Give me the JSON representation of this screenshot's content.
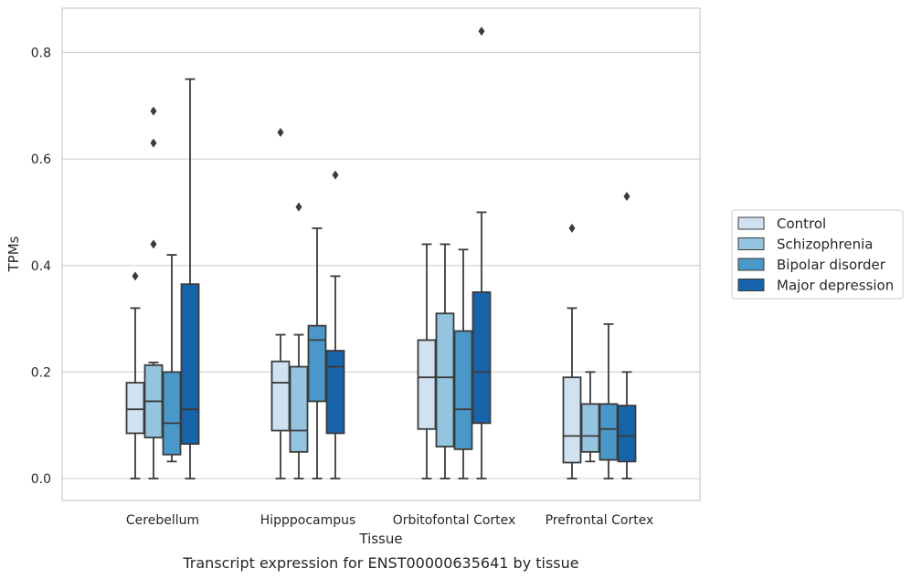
{
  "chart_data": {
    "type": "box",
    "xlabel": "Tissue",
    "ylabel": "TPMs",
    "caption": "Transcript expression for ENST00000635641 by tissue",
    "ylim": [
      -0.04,
      0.885
    ],
    "yticks": [
      0.0,
      0.2,
      0.4,
      0.6,
      0.8
    ],
    "ytick_labels": [
      "0.0",
      "0.2",
      "0.4",
      "0.6",
      "0.8"
    ],
    "grid": "horizontal",
    "legend_position": "right",
    "categories": [
      "Cerebellum",
      "Hipppocampus",
      "Orbitofontal Cortex",
      "Prefrontal Cortex"
    ],
    "series": [
      {
        "name": "Control",
        "color": "#d0e1f2",
        "boxes": [
          {
            "whisker_low": 0.0,
            "q1": 0.085,
            "median": 0.13,
            "q3": 0.18,
            "whisker_high": 0.32,
            "outliers": [
              0.38
            ]
          },
          {
            "whisker_low": 0.0,
            "q1": 0.09,
            "median": 0.18,
            "q3": 0.22,
            "whisker_high": 0.27,
            "outliers": [
              0.65
            ]
          },
          {
            "whisker_low": 0.0,
            "q1": 0.093,
            "median": 0.19,
            "q3": 0.26,
            "whisker_high": 0.44,
            "outliers": []
          },
          {
            "whisker_low": 0.0,
            "q1": 0.03,
            "median": 0.08,
            "q3": 0.19,
            "whisker_high": 0.32,
            "outliers": [
              0.47
            ]
          }
        ]
      },
      {
        "name": "Schizophrenia",
        "color": "#94c4df",
        "boxes": [
          {
            "whisker_low": 0.0,
            "q1": 0.077,
            "median": 0.145,
            "q3": 0.213,
            "whisker_high": 0.218,
            "outliers": [
              0.44,
              0.63,
              0.69
            ]
          },
          {
            "whisker_low": 0.0,
            "q1": 0.05,
            "median": 0.09,
            "q3": 0.21,
            "whisker_high": 0.27,
            "outliers": [
              0.51
            ]
          },
          {
            "whisker_low": 0.0,
            "q1": 0.06,
            "median": 0.19,
            "q3": 0.31,
            "whisker_high": 0.44,
            "outliers": []
          },
          {
            "whisker_low": 0.032,
            "q1": 0.05,
            "median": 0.08,
            "q3": 0.14,
            "whisker_high": 0.2,
            "outliers": []
          }
        ]
      },
      {
        "name": "Bipolar disorder",
        "color": "#4a98c9",
        "boxes": [
          {
            "whisker_low": 0.032,
            "q1": 0.045,
            "median": 0.104,
            "q3": 0.2,
            "whisker_high": 0.42,
            "outliers": []
          },
          {
            "whisker_low": 0.0,
            "q1": 0.145,
            "median": 0.26,
            "q3": 0.287,
            "whisker_high": 0.47,
            "outliers": []
          },
          {
            "whisker_low": 0.0,
            "q1": 0.055,
            "median": 0.13,
            "q3": 0.277,
            "whisker_high": 0.43,
            "outliers": []
          },
          {
            "whisker_low": 0.0,
            "q1": 0.035,
            "median": 0.093,
            "q3": 0.14,
            "whisker_high": 0.29,
            "outliers": []
          }
        ]
      },
      {
        "name": "Major depression",
        "color": "#1764ab",
        "boxes": [
          {
            "whisker_low": 0.0,
            "q1": 0.065,
            "median": 0.13,
            "q3": 0.365,
            "whisker_high": 0.75,
            "outliers": []
          },
          {
            "whisker_low": 0.0,
            "q1": 0.085,
            "median": 0.21,
            "q3": 0.24,
            "whisker_high": 0.38,
            "outliers": [
              0.57
            ]
          },
          {
            "whisker_low": 0.0,
            "q1": 0.104,
            "median": 0.2,
            "q3": 0.35,
            "whisker_high": 0.5,
            "outliers": [
              0.84
            ]
          },
          {
            "whisker_low": 0.0,
            "q1": 0.032,
            "median": 0.08,
            "q3": 0.137,
            "whisker_high": 0.2,
            "outliers": [
              0.53
            ]
          }
        ]
      }
    ]
  }
}
